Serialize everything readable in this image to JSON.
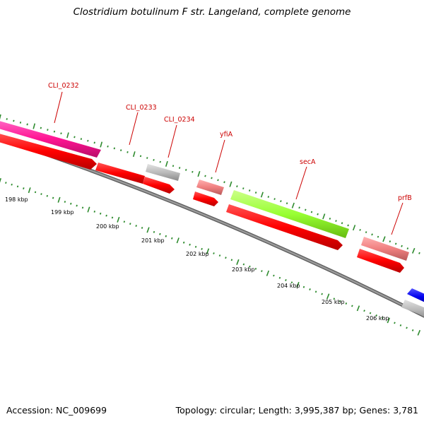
{
  "title": "Clostridium botulinum F str. Langeland, complete genome",
  "accession_text": "Accession: NC_009699",
  "topology_text": "Topology: circular; Length: 3,995,387 bp; Genes: 3,781",
  "gene_labels": [
    {
      "name": "CLI_0232",
      "color": "#cc0000"
    },
    {
      "name": "CLI_0233",
      "color": "#cc0000"
    },
    {
      "name": "CLI_0234",
      "color": "#cc0000"
    },
    {
      "name": "yfiA",
      "color": "#cc0000"
    },
    {
      "name": "secA",
      "color": "#cc0000"
    },
    {
      "name": "prfB",
      "color": "#cc0000"
    }
  ],
  "kbp_ticks": [
    "198 kbp",
    "199 kbp",
    "200 kbp",
    "201 kbp",
    "202 kbp",
    "203 kbp",
    "204 kbp",
    "205 kbp",
    "206 kbp"
  ],
  "colors": {
    "backbone": "#808080",
    "tick_green": "#2e8b2e",
    "cds_red": "#ff0000",
    "magenta": "#ff1493",
    "lime": "#99ff33",
    "pink": "#f08080",
    "gray_gene": "#bbbbbb",
    "blue": "#0000ee",
    "label_red": "#cc0000"
  }
}
